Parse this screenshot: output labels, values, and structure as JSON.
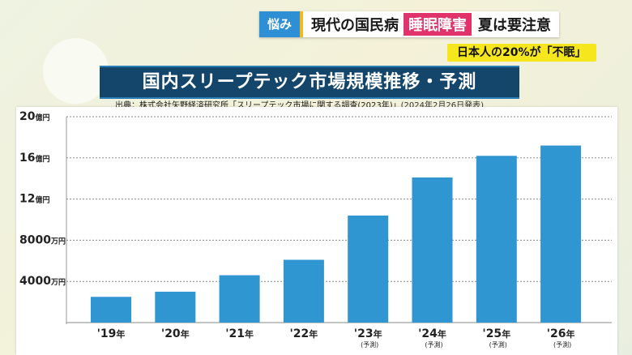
{
  "header": {
    "tag": "悩み",
    "topic": "現代の国民病",
    "highlight": "睡眠障害",
    "topic_suffix": "夏は要注意"
  },
  "subheadline": "日本人の20%が「不眠」",
  "source": {
    "text": "出典：株式会社矢野経済研究所「スリープテック市場に関する調査(2023年)」",
    "date": "(2024年2月26日発表)"
  },
  "colors": {
    "bar": "#3096d2",
    "title_bg": "#14466b",
    "tag": "#2f8fd4",
    "highlight": "#e0336b",
    "subhead_bg": "#f5e61e"
  },
  "chart_data": {
    "type": "bar",
    "title": "国内スリープテック市場規模推移・予測",
    "categories": [
      "'19",
      "'20",
      "'21",
      "'22",
      "'23",
      "'24",
      "'25",
      "'26"
    ],
    "category_suffix": "年",
    "projection_note": "(予測)",
    "projected": [
      false,
      false,
      false,
      false,
      true,
      true,
      true,
      true
    ],
    "values": [
      2500,
      3000,
      4600,
      6100,
      10400,
      14100,
      16200,
      17200
    ],
    "unit": "万円",
    "ylim": [
      0,
      20000
    ],
    "yticks": [
      {
        "value": 4000,
        "num": "4000",
        "unit": "万円"
      },
      {
        "value": 8000,
        "num": "8000",
        "unit": "万円"
      },
      {
        "value": 12000,
        "num": "12",
        "unit": "億円"
      },
      {
        "value": 16000,
        "num": "16",
        "unit": "億円"
      },
      {
        "value": 20000,
        "num": "20",
        "unit": "億円"
      }
    ],
    "grid": true,
    "xlabel": "",
    "ylabel": ""
  }
}
